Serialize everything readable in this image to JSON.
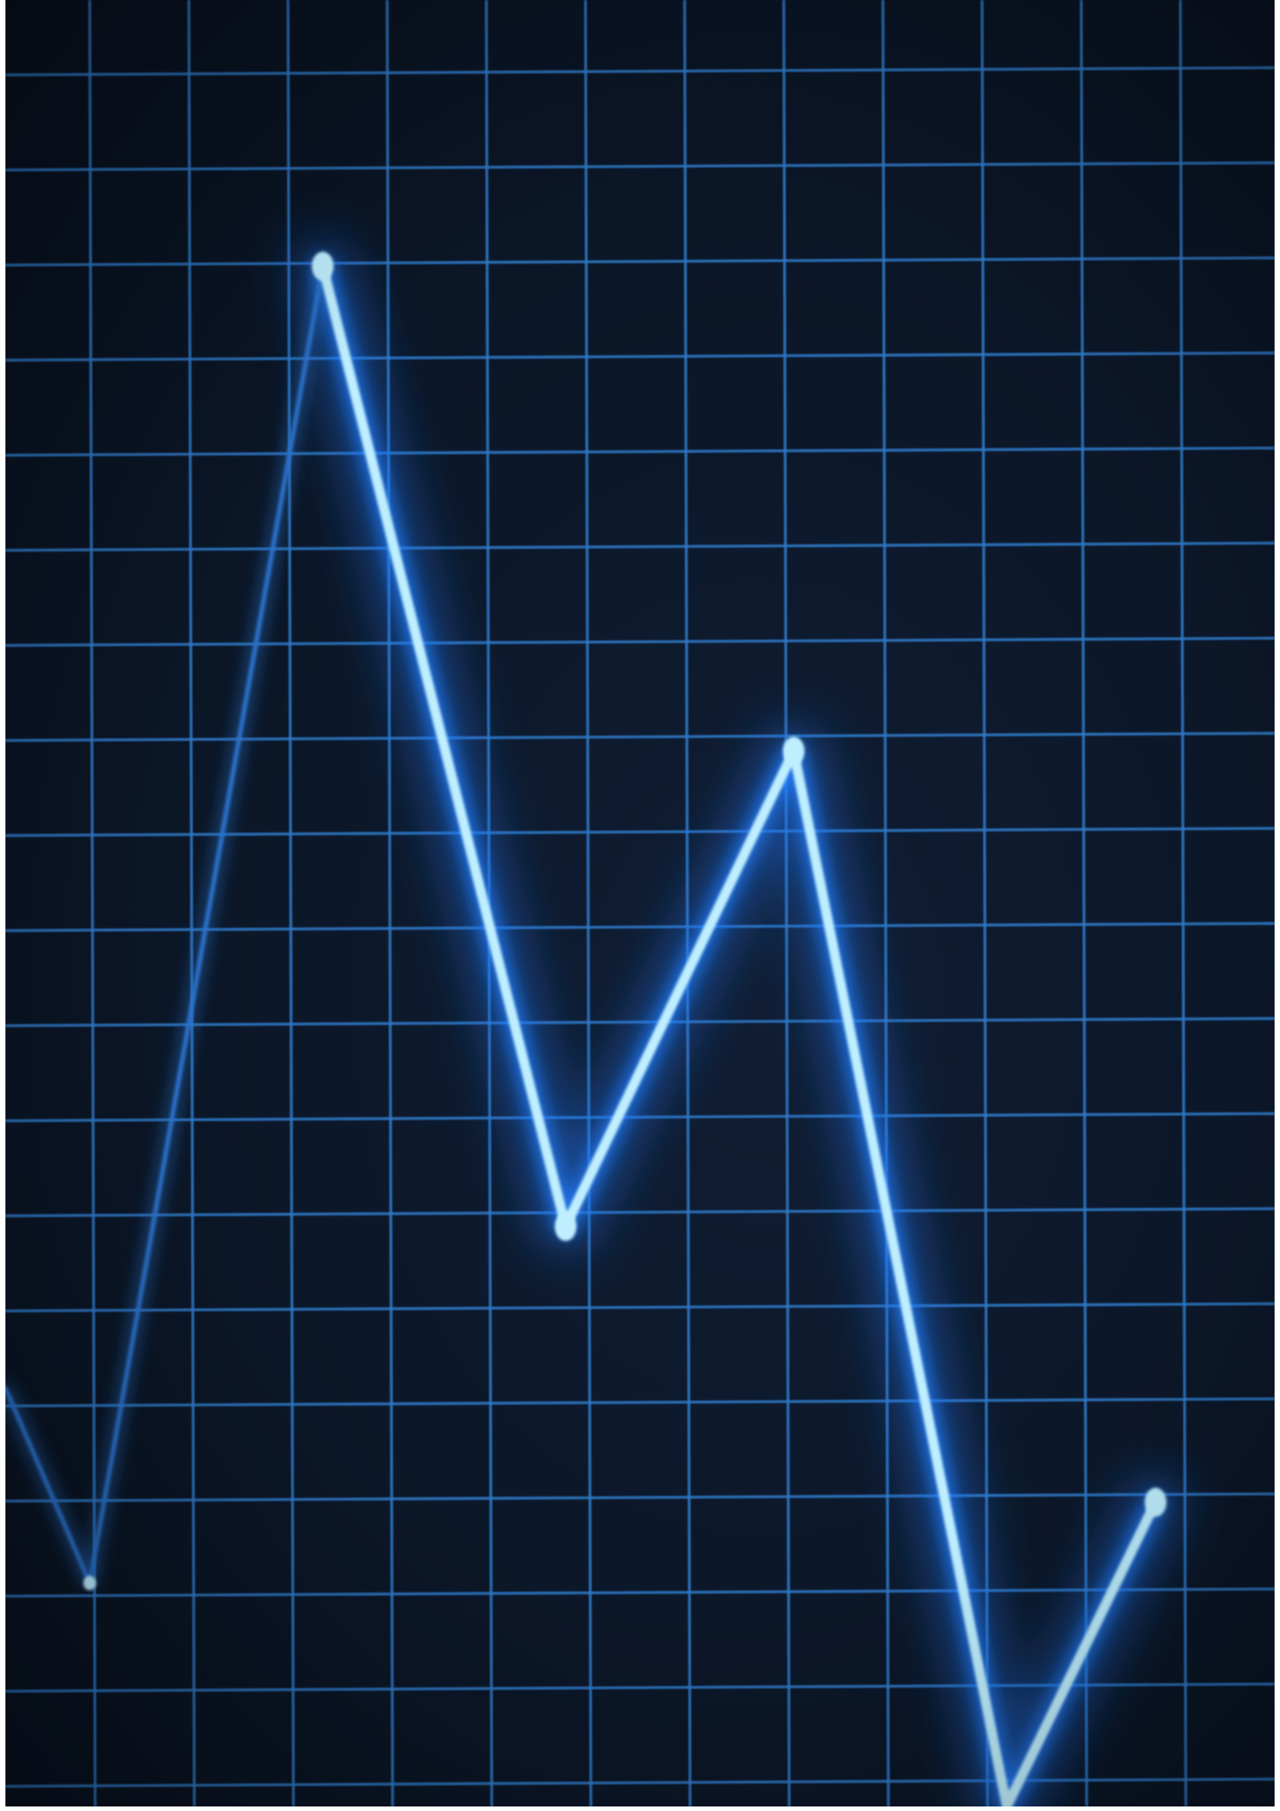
{
  "scene": {
    "subject": "glowing-line-graph-on-grid-screen",
    "colors": {
      "background": "#0b1627",
      "grid": "#2f79c8",
      "line_core": "#bfefff",
      "line_glow": "#1f7dff",
      "dim_line": "#2a72cc"
    },
    "chart_data": {
      "type": "line",
      "series": [
        {
          "values": [
            {
              "x": 0.0,
              "y": 4.4
            },
            {
              "x": 0.85,
              "y": 2.35
            },
            {
              "x": 3.2,
              "y": 16.2
            },
            {
              "x": 5.65,
              "y": 6.1
            },
            {
              "x": 7.95,
              "y": 11.1
            },
            {
              "x": 10.1,
              "y": 0.0
            },
            {
              "x": 11.6,
              "y": 3.2
            }
          ]
        }
      ],
      "xlim": [
        0,
        12.8
      ],
      "ylim": [
        0,
        19
      ],
      "grid": true
    }
  }
}
